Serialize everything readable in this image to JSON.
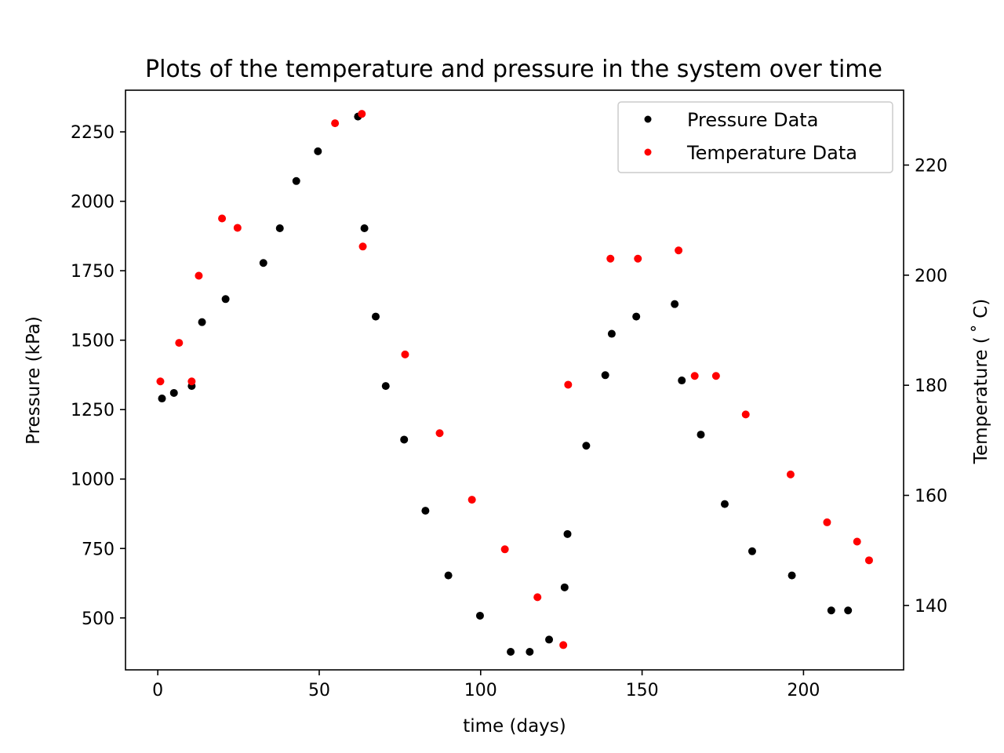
{
  "chart_data": {
    "type": "scatter",
    "title": "Plots of the temperature and pressure in the system over time",
    "xlabel": "time (days)",
    "ylabel": "Pressure (kPa)",
    "y2label": "Temperature ($^\\circ$C)",
    "y2label_display": "Temperature ( ˚ C)",
    "xlim": [
      -10,
      231
    ],
    "ylim": [
      313,
      2400
    ],
    "y2lim": [
      128.3,
      233.6
    ],
    "xticks": [
      0,
      50,
      100,
      150,
      200
    ],
    "yticks": [
      500,
      750,
      1000,
      1250,
      1500,
      1750,
      2000,
      2250
    ],
    "y2ticks": [
      140,
      160,
      180,
      200,
      220
    ],
    "legend_position": "top-right",
    "grid": false,
    "series": [
      {
        "name": "Pressure Data",
        "axis": "left",
        "color": "#000000",
        "points": [
          [
            1.3,
            1290
          ],
          [
            5,
            1310
          ],
          [
            10.5,
            1335
          ],
          [
            13.7,
            1565
          ],
          [
            21,
            1648
          ],
          [
            32.7,
            1778
          ],
          [
            37.8,
            1903
          ],
          [
            42.9,
            2073
          ],
          [
            49.6,
            2180
          ],
          [
            62,
            2305
          ],
          [
            64,
            1903
          ],
          [
            67.5,
            1585
          ],
          [
            70.6,
            1335
          ],
          [
            76.3,
            1142
          ],
          [
            82.9,
            886
          ],
          [
            90,
            653
          ],
          [
            99.8,
            508
          ],
          [
            109.3,
            378
          ],
          [
            115.2,
            378
          ],
          [
            121.2,
            422
          ],
          [
            126,
            610
          ],
          [
            126.9,
            802
          ],
          [
            132.7,
            1120
          ],
          [
            138.6,
            1374
          ],
          [
            140.6,
            1523
          ],
          [
            148.2,
            1585
          ],
          [
            160.1,
            1630
          ],
          [
            162.3,
            1355
          ],
          [
            168.2,
            1160
          ],
          [
            175.6,
            910
          ],
          [
            184.1,
            740
          ],
          [
            196.4,
            653
          ],
          [
            208.6,
            527
          ],
          [
            213.8,
            527
          ]
        ]
      },
      {
        "name": "Temperature Data",
        "axis": "right",
        "color": "#ff0000",
        "points": [
          [
            0.8,
            180.7
          ],
          [
            6.6,
            187.7
          ],
          [
            10.5,
            180.7
          ],
          [
            12.7,
            199.9
          ],
          [
            19.9,
            210.3
          ],
          [
            24.7,
            208.6
          ],
          [
            54.9,
            227.6
          ],
          [
            63.2,
            229.3
          ],
          [
            63.5,
            205.2
          ],
          [
            76.6,
            185.6
          ],
          [
            87.3,
            171.3
          ],
          [
            97.3,
            159.2
          ],
          [
            107.5,
            150.2
          ],
          [
            117.6,
            141.5
          ],
          [
            125.6,
            132.8
          ],
          [
            127.1,
            180.1
          ],
          [
            140.2,
            203.0
          ],
          [
            148.7,
            203.0
          ],
          [
            161.3,
            204.5
          ],
          [
            166.3,
            181.7
          ],
          [
            172.9,
            181.7
          ],
          [
            182.1,
            174.7
          ],
          [
            196.0,
            163.8
          ],
          [
            207.3,
            155.1
          ],
          [
            216.6,
            151.6
          ],
          [
            220.3,
            148.2
          ]
        ]
      }
    ]
  }
}
